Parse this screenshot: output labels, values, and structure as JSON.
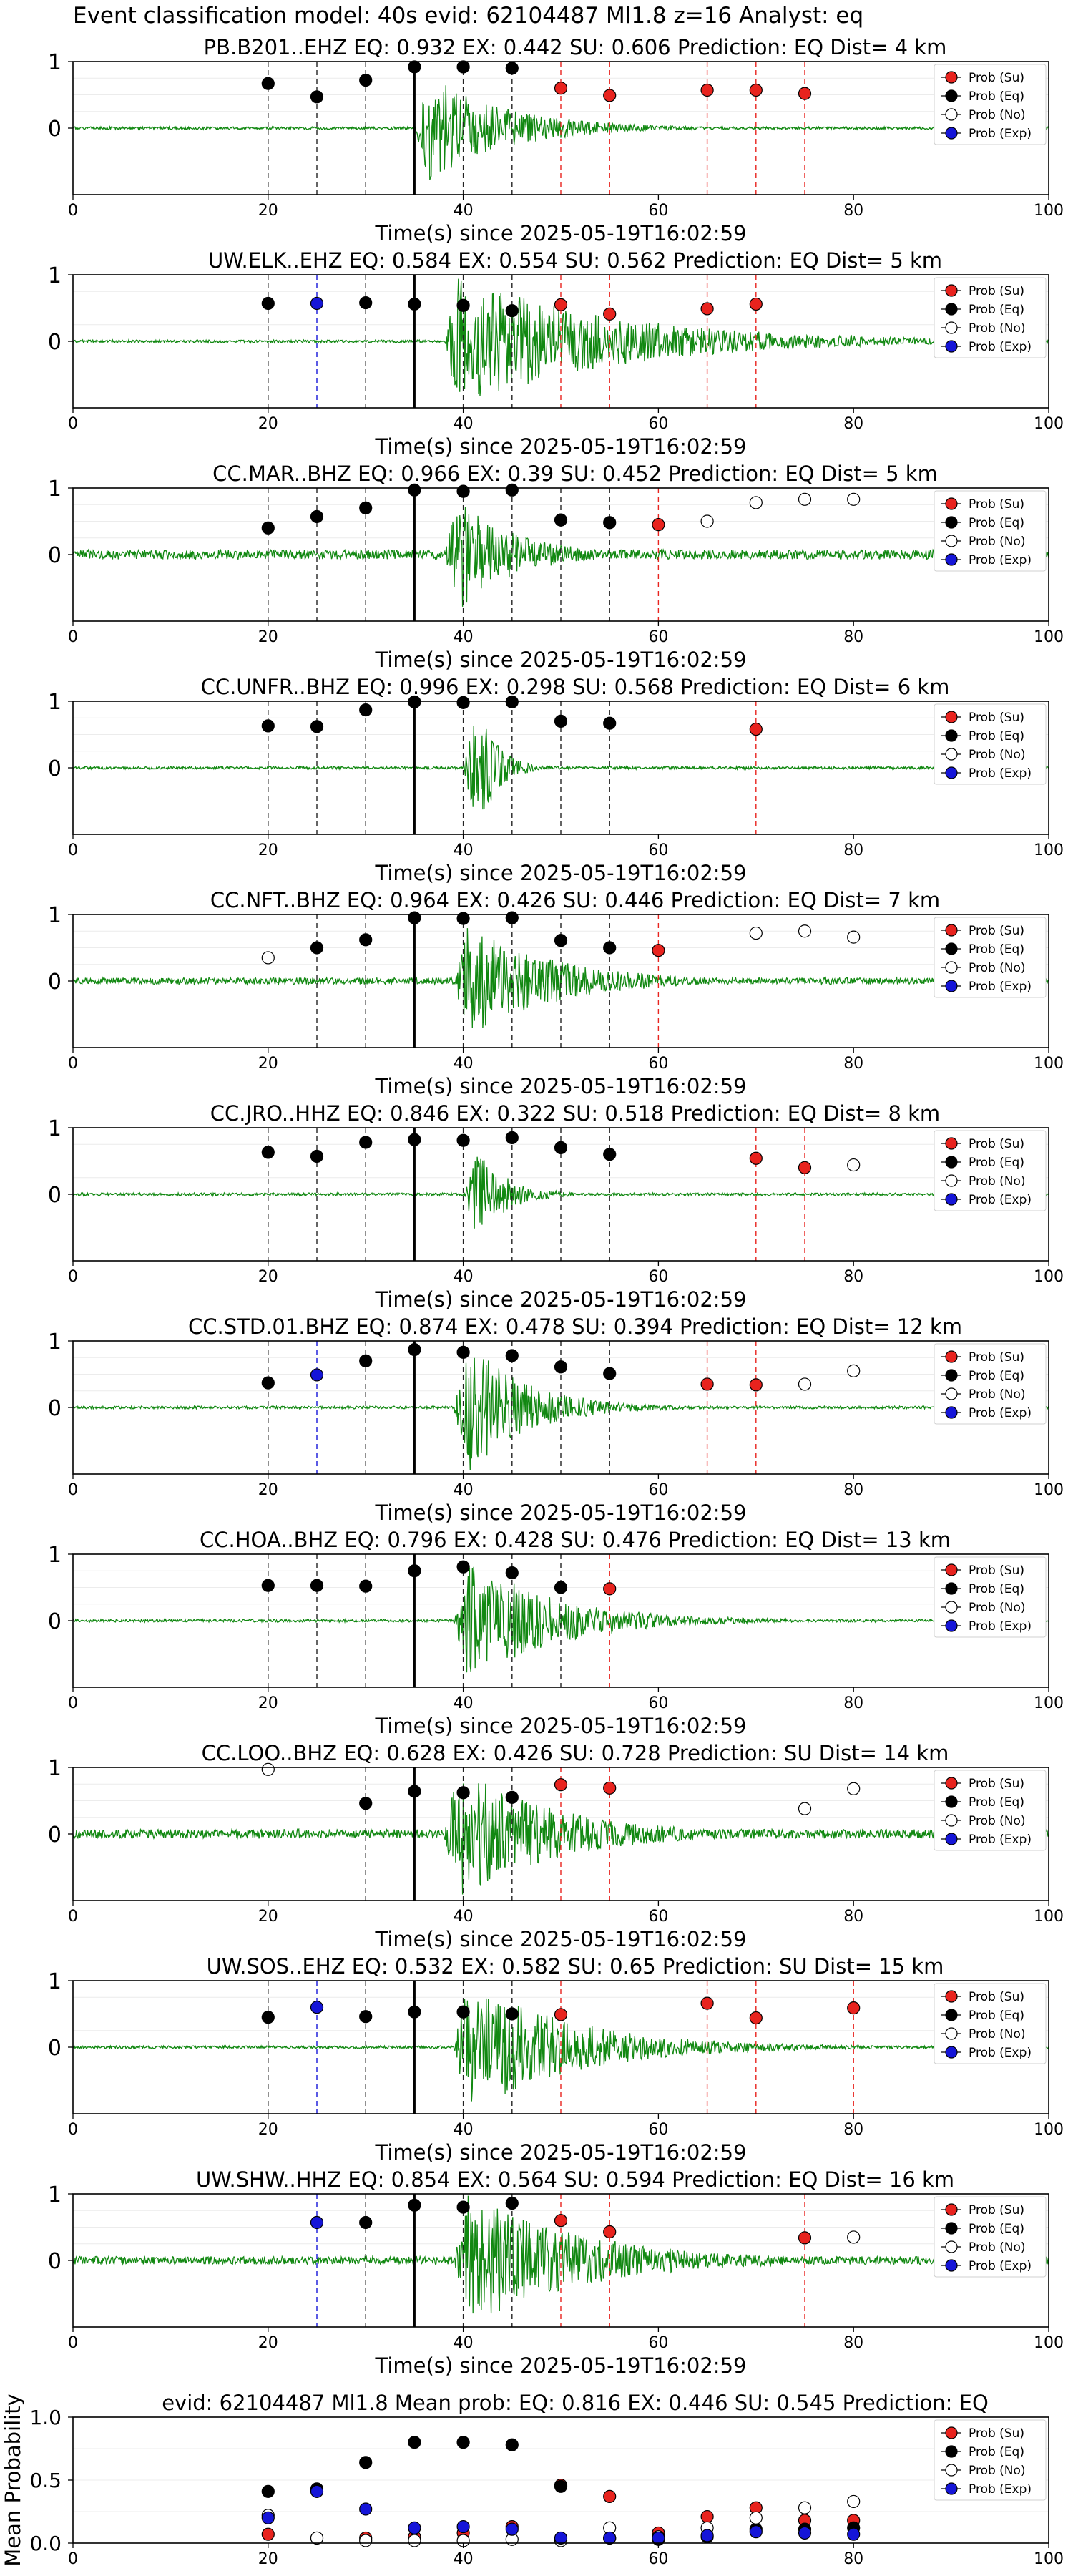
{
  "figure_title": "Event classification model: 40s evid: 62104487 Ml1.8 z=16 Analyst: eq",
  "x_label": "Time(s) since 2025-05-19T16:02:59",
  "x_ticks": [
    0,
    20,
    40,
    60,
    80,
    100
  ],
  "trace_y_ticks": [
    1,
    0
  ],
  "legend_entries": [
    "Prob (Su)",
    "Prob (Eq)",
    "Prob (No)",
    "Prob (Exp)"
  ],
  "colors": {
    "su": "#e8231e",
    "eq": "#000000",
    "no": "#ffffff",
    "exp": "#1515d8",
    "waveform": "#118811",
    "p_line": "#000000"
  },
  "chart_data": [
    {
      "type": "line",
      "title": "PB.B201..EHZ   EQ: 0.932  EX: 0.442  SU: 0.606   Prediction: EQ    Dist= 4 km",
      "xlim": [
        0,
        100
      ],
      "ylim": [
        -1,
        1
      ],
      "p_arrival": 35,
      "amp": 0.8,
      "noise": 0.02,
      "decay": 8,
      "seed": 1,
      "points": [
        {
          "x": 20,
          "y": 0.67,
          "c": "eq"
        },
        {
          "x": 25,
          "y": 0.47,
          "c": "eq"
        },
        {
          "x": 30,
          "y": 0.72,
          "c": "eq"
        },
        {
          "x": 35,
          "y": 0.92,
          "c": "eq"
        },
        {
          "x": 40,
          "y": 0.92,
          "c": "eq"
        },
        {
          "x": 45,
          "y": 0.9,
          "c": "eq"
        },
        {
          "x": 50,
          "y": 0.6,
          "c": "su"
        },
        {
          "x": 55,
          "y": 0.49,
          "c": "su"
        },
        {
          "x": 65,
          "y": 0.57,
          "c": "su"
        },
        {
          "x": 70,
          "y": 0.57,
          "c": "su"
        },
        {
          "x": 75,
          "y": 0.52,
          "c": "su"
        }
      ]
    },
    {
      "type": "line",
      "title": "UW.ELK..EHZ   EQ: 0.584  EX: 0.554  SU: 0.562   Prediction: EQ    Dist= 5 km",
      "xlim": [
        0,
        100
      ],
      "ylim": [
        -1,
        1
      ],
      "p_arrival": 38,
      "amp": 1.0,
      "noise": 0.02,
      "decay": 16,
      "seed": 2,
      "points": [
        {
          "x": 20,
          "y": 0.57,
          "c": "eq"
        },
        {
          "x": 25,
          "y": 0.57,
          "c": "exp"
        },
        {
          "x": 30,
          "y": 0.58,
          "c": "eq"
        },
        {
          "x": 35,
          "y": 0.56,
          "c": "eq"
        },
        {
          "x": 40,
          "y": 0.54,
          "c": "eq"
        },
        {
          "x": 45,
          "y": 0.46,
          "c": "eq"
        },
        {
          "x": 50,
          "y": 0.55,
          "c": "su"
        },
        {
          "x": 55,
          "y": 0.41,
          "c": "su"
        },
        {
          "x": 65,
          "y": 0.49,
          "c": "su"
        },
        {
          "x": 70,
          "y": 0.56,
          "c": "su"
        }
      ]
    },
    {
      "type": "line",
      "title": "CC.MAR..BHZ   EQ: 0.966  EX: 0.39  SU: 0.452   Prediction: EQ    Dist= 5 km",
      "xlim": [
        0,
        100
      ],
      "ylim": [
        -1,
        1
      ],
      "p_arrival": 38,
      "amp": 0.85,
      "noise": 0.07,
      "decay": 6,
      "seed": 3,
      "points": [
        {
          "x": 20,
          "y": 0.4,
          "c": "eq"
        },
        {
          "x": 25,
          "y": 0.57,
          "c": "eq"
        },
        {
          "x": 30,
          "y": 0.7,
          "c": "eq"
        },
        {
          "x": 35,
          "y": 0.97,
          "c": "eq"
        },
        {
          "x": 40,
          "y": 0.95,
          "c": "eq"
        },
        {
          "x": 45,
          "y": 0.97,
          "c": "eq"
        },
        {
          "x": 50,
          "y": 0.52,
          "c": "eq"
        },
        {
          "x": 55,
          "y": 0.48,
          "c": "eq"
        },
        {
          "x": 60,
          "y": 0.45,
          "c": "su"
        },
        {
          "x": 65,
          "y": 0.5,
          "c": "no"
        },
        {
          "x": 70,
          "y": 0.78,
          "c": "no"
        },
        {
          "x": 75,
          "y": 0.83,
          "c": "no"
        },
        {
          "x": 80,
          "y": 0.83,
          "c": "no"
        }
      ]
    },
    {
      "type": "line",
      "title": "CC.UNFR..BHZ   EQ: 0.996  EX: 0.298  SU: 0.568   Prediction: EQ    Dist= 6 km",
      "xlim": [
        0,
        100
      ],
      "ylim": [
        -1,
        1
      ],
      "p_arrival": 40,
      "amp": 1.0,
      "noise": 0.02,
      "decay": 2,
      "seed": 4,
      "points": [
        {
          "x": 20,
          "y": 0.63,
          "c": "eq"
        },
        {
          "x": 25,
          "y": 0.62,
          "c": "eq"
        },
        {
          "x": 30,
          "y": 0.87,
          "c": "eq"
        },
        {
          "x": 35,
          "y": 0.99,
          "c": "eq"
        },
        {
          "x": 40,
          "y": 0.98,
          "c": "eq"
        },
        {
          "x": 45,
          "y": 0.99,
          "c": "eq"
        },
        {
          "x": 50,
          "y": 0.7,
          "c": "eq"
        },
        {
          "x": 55,
          "y": 0.67,
          "c": "eq"
        },
        {
          "x": 70,
          "y": 0.58,
          "c": "su"
        }
      ]
    },
    {
      "type": "line",
      "title": "CC.NFT..BHZ   EQ: 0.964  EX: 0.426  SU: 0.446   Prediction: EQ    Dist= 7 km",
      "xlim": [
        0,
        100
      ],
      "ylim": [
        -1,
        1
      ],
      "p_arrival": 39,
      "amp": 0.85,
      "noise": 0.05,
      "decay": 9,
      "seed": 5,
      "points": [
        {
          "x": 20,
          "y": 0.35,
          "c": "no"
        },
        {
          "x": 25,
          "y": 0.5,
          "c": "eq"
        },
        {
          "x": 30,
          "y": 0.62,
          "c": "eq"
        },
        {
          "x": 35,
          "y": 0.95,
          "c": "eq"
        },
        {
          "x": 40,
          "y": 0.94,
          "c": "eq"
        },
        {
          "x": 45,
          "y": 0.95,
          "c": "eq"
        },
        {
          "x": 50,
          "y": 0.61,
          "c": "eq"
        },
        {
          "x": 55,
          "y": 0.5,
          "c": "eq"
        },
        {
          "x": 60,
          "y": 0.46,
          "c": "su"
        },
        {
          "x": 70,
          "y": 0.72,
          "c": "no"
        },
        {
          "x": 75,
          "y": 0.75,
          "c": "no"
        },
        {
          "x": 80,
          "y": 0.66,
          "c": "no"
        }
      ]
    },
    {
      "type": "line",
      "title": "CC.JRO..HHZ   EQ: 0.846  EX: 0.322  SU: 0.518   Prediction: EQ    Dist= 8 km",
      "xlim": [
        0,
        100
      ],
      "ylim": [
        -1,
        1
      ],
      "p_arrival": 40,
      "amp": 0.7,
      "noise": 0.02,
      "decay": 3,
      "seed": 6,
      "points": [
        {
          "x": 20,
          "y": 0.63,
          "c": "eq"
        },
        {
          "x": 25,
          "y": 0.57,
          "c": "eq"
        },
        {
          "x": 30,
          "y": 0.78,
          "c": "eq"
        },
        {
          "x": 35,
          "y": 0.82,
          "c": "eq"
        },
        {
          "x": 40,
          "y": 0.81,
          "c": "eq"
        },
        {
          "x": 45,
          "y": 0.85,
          "c": "eq"
        },
        {
          "x": 50,
          "y": 0.7,
          "c": "eq"
        },
        {
          "x": 55,
          "y": 0.6,
          "c": "eq"
        },
        {
          "x": 70,
          "y": 0.54,
          "c": "su"
        },
        {
          "x": 75,
          "y": 0.4,
          "c": "su"
        },
        {
          "x": 80,
          "y": 0.44,
          "c": "no"
        }
      ]
    },
    {
      "type": "line",
      "title": "CC.STD.01.BHZ   EQ: 0.874  EX: 0.478  SU: 0.394   Prediction: EQ    Dist= 12 km",
      "xlim": [
        0,
        100
      ],
      "ylim": [
        -1,
        1
      ],
      "p_arrival": 39,
      "amp": 1.0,
      "noise": 0.02,
      "decay": 6,
      "seed": 7,
      "points": [
        {
          "x": 20,
          "y": 0.37,
          "c": "eq"
        },
        {
          "x": 25,
          "y": 0.49,
          "c": "exp"
        },
        {
          "x": 30,
          "y": 0.7,
          "c": "eq"
        },
        {
          "x": 35,
          "y": 0.87,
          "c": "eq"
        },
        {
          "x": 40,
          "y": 0.83,
          "c": "eq"
        },
        {
          "x": 45,
          "y": 0.78,
          "c": "eq"
        },
        {
          "x": 50,
          "y": 0.61,
          "c": "eq"
        },
        {
          "x": 55,
          "y": 0.51,
          "c": "eq"
        },
        {
          "x": 65,
          "y": 0.35,
          "c": "su"
        },
        {
          "x": 70,
          "y": 0.34,
          "c": "su"
        },
        {
          "x": 75,
          "y": 0.35,
          "c": "no"
        },
        {
          "x": 80,
          "y": 0.55,
          "c": "no"
        }
      ]
    },
    {
      "type": "line",
      "title": "CC.HOA..BHZ   EQ: 0.796  EX: 0.428  SU: 0.476   Prediction: EQ    Dist= 13 km",
      "xlim": [
        0,
        100
      ],
      "ylim": [
        -1,
        1
      ],
      "p_arrival": 39,
      "amp": 0.95,
      "noise": 0.02,
      "decay": 9,
      "seed": 8,
      "points": [
        {
          "x": 20,
          "y": 0.53,
          "c": "eq"
        },
        {
          "x": 25,
          "y": 0.53,
          "c": "eq"
        },
        {
          "x": 30,
          "y": 0.52,
          "c": "eq"
        },
        {
          "x": 35,
          "y": 0.75,
          "c": "eq"
        },
        {
          "x": 40,
          "y": 0.81,
          "c": "eq"
        },
        {
          "x": 45,
          "y": 0.72,
          "c": "eq"
        },
        {
          "x": 50,
          "y": 0.5,
          "c": "eq"
        },
        {
          "x": 55,
          "y": 0.48,
          "c": "su"
        }
      ]
    },
    {
      "type": "line",
      "title": "CC.LOO..BHZ   EQ: 0.628  EX: 0.426  SU: 0.728   Prediction: SU    Dist= 14 km",
      "xlim": [
        0,
        100
      ],
      "ylim": [
        -1,
        1
      ],
      "p_arrival": 38,
      "amp": 1.0,
      "noise": 0.07,
      "decay": 10,
      "seed": 9,
      "points": [
        {
          "x": 20,
          "y": 0.97,
          "c": "no"
        },
        {
          "x": 30,
          "y": 0.46,
          "c": "eq"
        },
        {
          "x": 35,
          "y": 0.64,
          "c": "eq"
        },
        {
          "x": 40,
          "y": 0.62,
          "c": "eq"
        },
        {
          "x": 45,
          "y": 0.55,
          "c": "eq"
        },
        {
          "x": 50,
          "y": 0.74,
          "c": "su"
        },
        {
          "x": 55,
          "y": 0.69,
          "c": "su"
        },
        {
          "x": 75,
          "y": 0.38,
          "c": "no"
        },
        {
          "x": 80,
          "y": 0.68,
          "c": "no"
        }
      ]
    },
    {
      "type": "line",
      "title": "UW.SOS..EHZ   EQ: 0.532  EX: 0.582  SU: 0.65   Prediction: SU    Dist= 15 km",
      "xlim": [
        0,
        100
      ],
      "ylim": [
        -1,
        1
      ],
      "p_arrival": 39,
      "amp": 1.0,
      "noise": 0.02,
      "decay": 11,
      "seed": 10,
      "points": [
        {
          "x": 20,
          "y": 0.45,
          "c": "eq"
        },
        {
          "x": 25,
          "y": 0.6,
          "c": "exp"
        },
        {
          "x": 30,
          "y": 0.46,
          "c": "eq"
        },
        {
          "x": 35,
          "y": 0.53,
          "c": "eq"
        },
        {
          "x": 40,
          "y": 0.53,
          "c": "eq"
        },
        {
          "x": 45,
          "y": 0.5,
          "c": "eq"
        },
        {
          "x": 50,
          "y": 0.49,
          "c": "su"
        },
        {
          "x": 65,
          "y": 0.66,
          "c": "su"
        },
        {
          "x": 70,
          "y": 0.44,
          "c": "su"
        },
        {
          "x": 80,
          "y": 0.59,
          "c": "su"
        }
      ]
    },
    {
      "type": "line",
      "title": "UW.SHW..HHZ   EQ: 0.854  EX: 0.564  SU: 0.594   Prediction: EQ    Dist= 16 km",
      "xlim": [
        0,
        100
      ],
      "ylim": [
        -1,
        1
      ],
      "p_arrival": 39,
      "amp": 1.0,
      "noise": 0.06,
      "decay": 12,
      "seed": 11,
      "points": [
        {
          "x": 25,
          "y": 0.57,
          "c": "exp"
        },
        {
          "x": 30,
          "y": 0.57,
          "c": "eq"
        },
        {
          "x": 35,
          "y": 0.83,
          "c": "eq"
        },
        {
          "x": 40,
          "y": 0.8,
          "c": "eq"
        },
        {
          "x": 45,
          "y": 0.86,
          "c": "eq"
        },
        {
          "x": 50,
          "y": 0.6,
          "c": "su"
        },
        {
          "x": 55,
          "y": 0.43,
          "c": "su"
        },
        {
          "x": 75,
          "y": 0.34,
          "c": "su"
        },
        {
          "x": 80,
          "y": 0.35,
          "c": "no"
        }
      ]
    },
    {
      "type": "scatter",
      "title": "evid: 62104487  Ml1.8   Mean prob:   EQ: 0.816  EX: 0.446  SU: 0.545   Prediction: EQ",
      "ylabel": "Mean Probability",
      "xlim": [
        0,
        100
      ],
      "ylim": [
        0,
        1
      ],
      "yticks": [
        1.0,
        0.5,
        0.0
      ],
      "series": [
        {
          "name": "Prob (Su)",
          "c": "su",
          "x": [
            20,
            25,
            30,
            35,
            40,
            45,
            50,
            55,
            60,
            65,
            70,
            75,
            80
          ],
          "y": [
            0.07,
            0.04,
            0.04,
            0.05,
            0.08,
            0.13,
            0.46,
            0.37,
            0.08,
            0.21,
            0.28,
            0.18,
            0.18
          ]
        },
        {
          "name": "Prob (Eq)",
          "c": "eq",
          "x": [
            20,
            25,
            30,
            35,
            40,
            45,
            50,
            55,
            60,
            65,
            70,
            75,
            80
          ],
          "y": [
            0.41,
            0.43,
            0.64,
            0.8,
            0.8,
            0.78,
            0.45,
            0.04,
            0.03,
            0.05,
            0.11,
            0.11,
            0.12
          ]
        },
        {
          "name": "Prob (No)",
          "c": "no",
          "x": [
            20,
            25,
            30,
            35,
            40,
            45,
            50,
            55,
            60,
            65,
            70,
            75,
            80
          ],
          "y": [
            0.22,
            0.04,
            0.02,
            0.02,
            0.02,
            0.03,
            0.02,
            0.12,
            0.05,
            0.12,
            0.2,
            0.28,
            0.33
          ]
        },
        {
          "name": "Prob (Exp)",
          "c": "exp",
          "x": [
            20,
            25,
            30,
            35,
            40,
            45,
            50,
            55,
            60,
            65,
            70,
            75,
            80
          ],
          "y": [
            0.2,
            0.41,
            0.27,
            0.12,
            0.13,
            0.11,
            0.04,
            0.04,
            0.04,
            0.06,
            0.09,
            0.08,
            0.07
          ]
        }
      ]
    }
  ]
}
